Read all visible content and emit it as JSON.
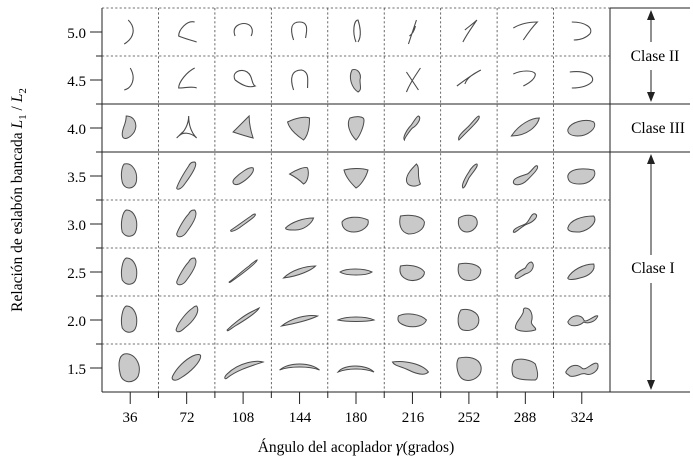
{
  "figure": {
    "y_axis_label_main": "Relación de eslabón bancada ",
    "y_axis_label_math": "L",
    "y_axis_label_sub1": "1",
    "y_axis_label_slash": " / ",
    "y_axis_label_math2": "L",
    "y_axis_label_sub2": "2",
    "x_axis_label_main": "Ángulo del acoplador ",
    "x_axis_label_gamma": "γ",
    "x_axis_label_units": "(grados)",
    "x_ticks": [
      "36",
      "72",
      "108",
      "144",
      "180",
      "216",
      "252",
      "288",
      "324"
    ],
    "y_ticks": [
      "5.0",
      "4.5",
      "4.0",
      "3.5",
      "3.0",
      "2.5",
      "2.0",
      "1.5"
    ],
    "classes": [
      {
        "label": "Clase II",
        "rows": [
          "5.0",
          "4.5"
        ]
      },
      {
        "label": "Clase III",
        "rows": [
          "4.0"
        ]
      },
      {
        "label": "Clase I",
        "rows": [
          "3.5",
          "3.0",
          "2.5",
          "2.0",
          "1.5"
        ]
      }
    ]
  }
}
